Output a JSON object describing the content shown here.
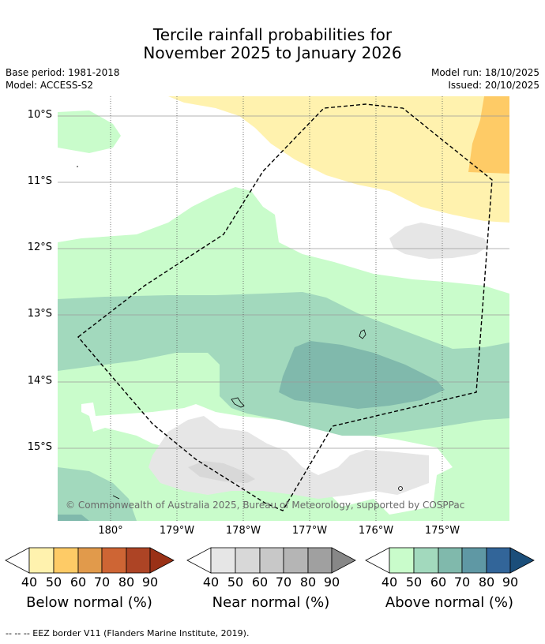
{
  "title": {
    "line1": "Tercile rainfall probabilities for",
    "line2": "November 2025 to January 2026"
  },
  "meta": {
    "base_period": "Base period: 1981-2018",
    "model": "Model: ACCESS-S2",
    "model_run": "Model run: 18/10/2025",
    "issued": "Issued: 20/10/2025"
  },
  "map": {
    "lat_labels": [
      "10°S",
      "11°S",
      "12°S",
      "13°S",
      "14°S",
      "15°S"
    ],
    "lon_labels": [
      "180°",
      "179°W",
      "178°W",
      "177°W",
      "176°W",
      "175°W"
    ],
    "copyright": "© Commonwealth of Australia 2025, Bureau of Meteorology, supported by COSPPac"
  },
  "colorbars": [
    {
      "label": "Below normal (%)",
      "ticks": [
        "40",
        "50",
        "60",
        "70",
        "80",
        "90"
      ],
      "colors": [
        "#fff2ae",
        "#fecb66",
        "#e19a4b",
        "#ce6534",
        "#ad4425",
        "#9a3116"
      ]
    },
    {
      "label": "Near normal (%)",
      "ticks": [
        "40",
        "50",
        "60",
        "70",
        "80",
        "90"
      ],
      "colors": [
        "#e6e6e6",
        "#d8d8d8",
        "#c8c8c8",
        "#b5b5b5",
        "#a0a0a0",
        "#878787"
      ]
    },
    {
      "label": "Above normal (%)",
      "ticks": [
        "40",
        "50",
        "60",
        "70",
        "80",
        "90"
      ],
      "colors": [
        "#c9fccb",
        "#a2d9bd",
        "#80b9ac",
        "#5f98a4",
        "#326599",
        "#1b4e7a"
      ]
    }
  ],
  "footer": "--  --  -- EEZ border V11 (Flanders Marine Institute, 2019)."
}
